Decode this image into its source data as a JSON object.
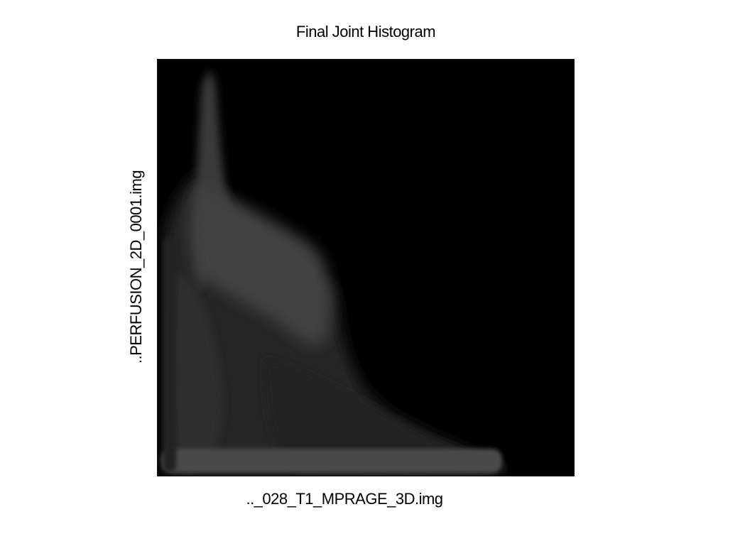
{
  "chart_data": {
    "type": "heatmap",
    "title": "Final Joint Histogram",
    "xlabel": ".._028_T1_MPRAGE_3D.img",
    "ylabel": "..PERFUSION_2D_0001.img",
    "colormap": "gray",
    "background_color": "#000000",
    "grid": false,
    "legend": "none",
    "description_values": {
      "max_intensity": 0.33
    }
  }
}
